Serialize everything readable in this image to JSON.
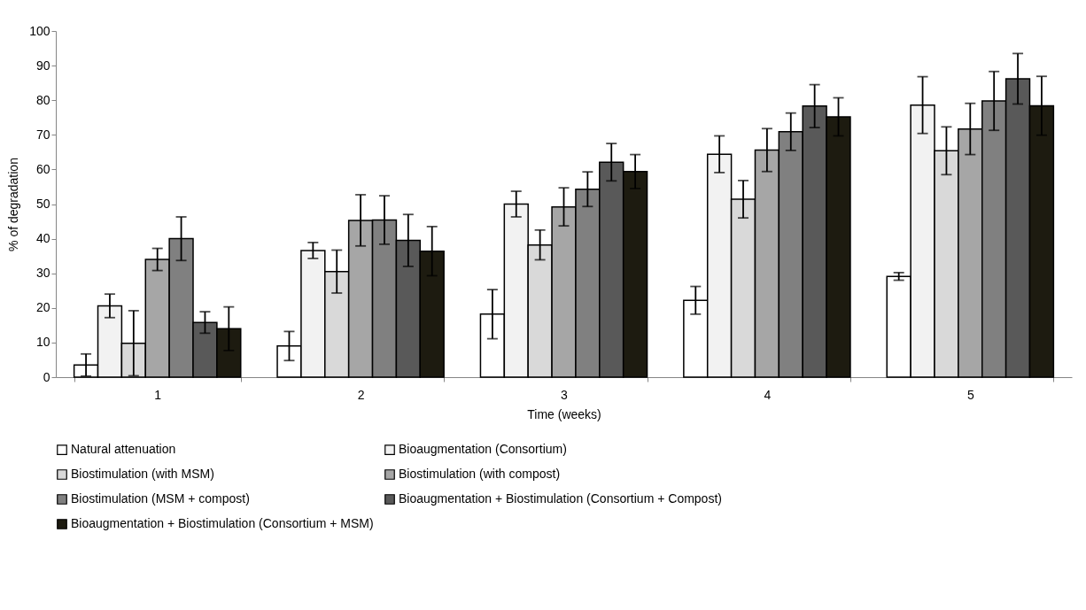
{
  "chart_data": {
    "type": "bar",
    "xlabel": "Time (weeks)",
    "ylabel": "% of degradation",
    "categories": [
      "1",
      "2",
      "3",
      "4",
      "5"
    ],
    "ylim": [
      0,
      100
    ],
    "yticks": [
      0,
      10,
      20,
      30,
      40,
      50,
      60,
      70,
      80,
      90,
      100
    ],
    "grid": false,
    "legend": "bottom",
    "series": [
      {
        "name": "Natural attenuation",
        "color": "#ffffff",
        "values": [
          3.5,
          9,
          18.2,
          22.2,
          29.1
        ],
        "errors": [
          3.2,
          4.2,
          7.1,
          4,
          1.1
        ]
      },
      {
        "name": "Bioaugmentation (Consortium)",
        "color": "#f2f2f2",
        "values": [
          20.6,
          36.6,
          50,
          64.4,
          78.6
        ],
        "errors": [
          3.4,
          2.3,
          3.7,
          5.3,
          8.2
        ]
      },
      {
        "name": "Biostimulation (with MSM)",
        "color": "#d9d9d9",
        "values": [
          9.8,
          30.5,
          38.2,
          51.4,
          65.4
        ],
        "errors": [
          9.4,
          6.2,
          4.3,
          5.4,
          6.9
        ]
      },
      {
        "name": "Biostimulation (with compost)",
        "color": "#a6a6a6",
        "values": [
          34,
          45.3,
          49.2,
          65.6,
          71.7
        ],
        "errors": [
          3.2,
          7.4,
          5.5,
          6.2,
          7.4
        ]
      },
      {
        "name": "Biostimulation (MSM + compost)",
        "color": "#808080",
        "values": [
          40,
          45.4,
          54.3,
          70.9,
          79.8
        ],
        "errors": [
          6.3,
          7,
          5,
          5.4,
          8.5
        ]
      },
      {
        "name": "Bioaugmentation + Biostimulation (Consortium + Compost)",
        "color": "#595959",
        "values": [
          15.8,
          39.5,
          62.1,
          78.3,
          86.2
        ],
        "errors": [
          3.1,
          7.5,
          5.4,
          6.2,
          7.3
        ]
      },
      {
        "name": "Bioaugmentation + Biostimulation (Consortium + MSM)",
        "color": "#1d1b10",
        "values": [
          14,
          36.4,
          59.4,
          75.2,
          78.4
        ],
        "errors": [
          6.3,
          7.1,
          4.9,
          5.5,
          8.5
        ]
      }
    ]
  }
}
